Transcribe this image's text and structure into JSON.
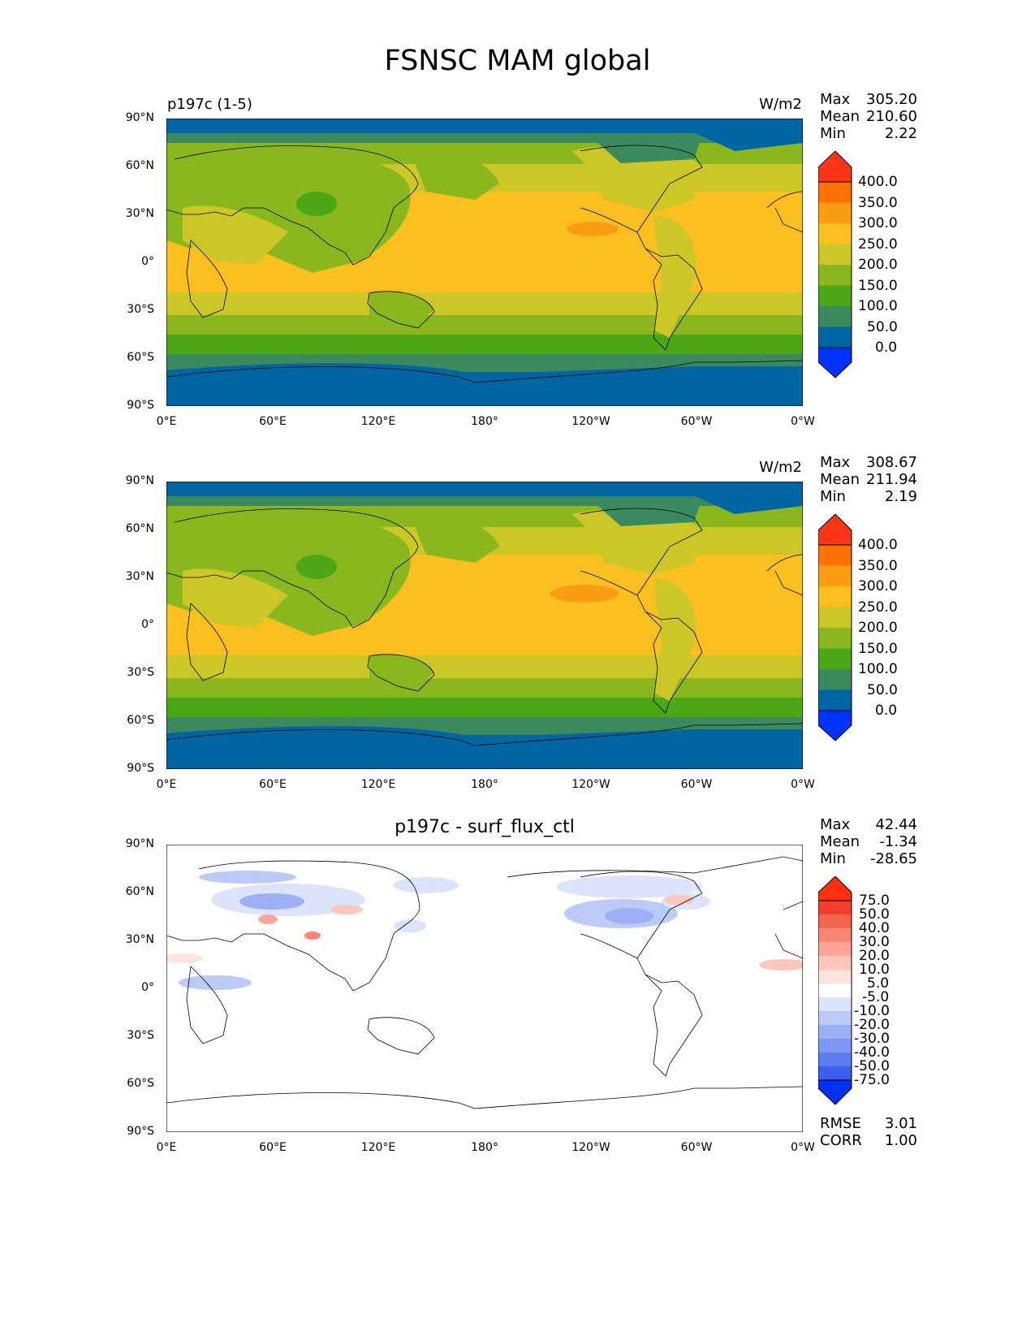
{
  "title": "FSNSC MAM global",
  "axes": {
    "lat_ticks": [
      "90°N",
      "60°N",
      "30°N",
      "0°",
      "30°S",
      "60°S",
      "90°S"
    ],
    "lon_ticks": [
      "0°E",
      "60°E",
      "120°E",
      "180°",
      "120°W",
      "60°W",
      "0°W"
    ]
  },
  "colors": {
    "abs_scale": [
      "#0033ff",
      "#0066a3",
      "#3a8a5e",
      "#4ca615",
      "#8bb71e",
      "#ccc627",
      "#fbbf20",
      "#fb9d13",
      "#fd7207",
      "#ff3517"
    ],
    "diff_scale": [
      "#0030f5",
      "#3a5ef0",
      "#5b7df0",
      "#7d97f3",
      "#9eb0f5",
      "#bccaf8",
      "#dce4fc",
      "#ffffff",
      "#fde3dd",
      "#fcc6bb",
      "#fca597",
      "#f98573",
      "#f5644f",
      "#f23f2e",
      "#ff2f10"
    ]
  },
  "chart_data": [
    {
      "type": "heatmap",
      "label": "p197c (1-5)",
      "units": "W/m2",
      "stats": {
        "max_label": "Max",
        "max": "305.20",
        "mean_label": "Mean",
        "mean": "210.60",
        "min_label": "Min",
        "min": "2.22"
      },
      "levels": [
        "0.0",
        "50.0",
        "100.0",
        "150.0",
        "200.0",
        "250.0",
        "300.0",
        "350.0",
        "400.0"
      ],
      "lon_range": [
        0,
        360
      ],
      "lat_range": [
        -90,
        90
      ]
    },
    {
      "type": "heatmap",
      "label": "",
      "units": "W/m2",
      "stats": {
        "max_label": "Max",
        "max": "308.67",
        "mean_label": "Mean",
        "mean": "211.94",
        "min_label": "Min",
        "min": "2.19"
      },
      "levels": [
        "0.0",
        "50.0",
        "100.0",
        "150.0",
        "200.0",
        "250.0",
        "300.0",
        "350.0",
        "400.0"
      ],
      "lon_range": [
        0,
        360
      ],
      "lat_range": [
        -90,
        90
      ]
    },
    {
      "type": "heatmap",
      "title": "p197c - surf_flux_ctl",
      "stats": {
        "max_label": "Max",
        "max": "42.44",
        "mean_label": "Mean",
        "mean": "-1.34",
        "min_label": "Min",
        "min": "-28.65"
      },
      "levels": [
        "-75.0",
        "-50.0",
        "-40.0",
        "-30.0",
        "-20.0",
        "-10.0",
        "-5.0",
        "5.0",
        "10.0",
        "20.0",
        "30.0",
        "40.0",
        "50.0",
        "75.0"
      ],
      "extra": {
        "rmse_label": "RMSE",
        "rmse": "3.01",
        "corr_label": "CORR",
        "corr": "1.00"
      },
      "lon_range": [
        0,
        360
      ],
      "lat_range": [
        -90,
        90
      ]
    }
  ]
}
